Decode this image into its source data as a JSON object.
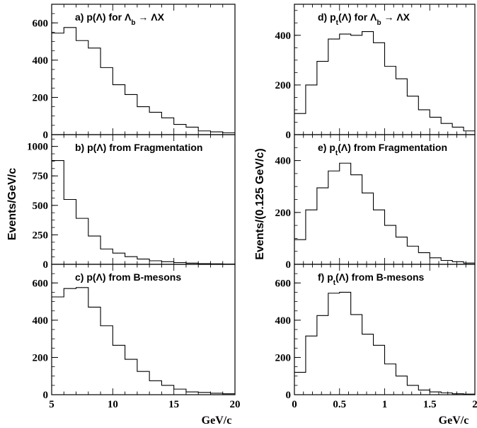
{
  "figure": {
    "left_ylabel": "Events/GeV/c",
    "right_ylabel": "Events/(0.125 GeV/c)",
    "left_xlabel": "GeV/c",
    "right_xlabel": "GeV/c"
  },
  "chart_data": [
    {
      "id": "a",
      "type": "histogram",
      "column": "left",
      "row": 0,
      "title": {
        "pre": "a) p(",
        "lam": "Λ",
        "mid": ") for ",
        "lam2": "Λ",
        "sub": "b",
        "post": " → ΛX"
      },
      "xlim": [
        5,
        20
      ],
      "ylim": [
        0,
        700
      ],
      "yticks": [
        0,
        200,
        400,
        600
      ],
      "xticks": [
        5,
        10,
        15,
        20
      ],
      "edges": [
        5,
        6,
        7,
        8,
        9,
        10,
        11,
        12,
        13,
        14,
        15,
        16,
        17,
        18,
        19,
        20
      ],
      "values": [
        545,
        575,
        505,
        465,
        360,
        268,
        215,
        150,
        120,
        90,
        55,
        40,
        20,
        15,
        10
      ]
    },
    {
      "id": "b",
      "type": "histogram",
      "column": "left",
      "row": 1,
      "title": {
        "pre": "b) p(",
        "lam": "Λ",
        "mid": ") from Fragmentation",
        "lam2": "",
        "sub": "",
        "post": ""
      },
      "xlim": [
        5,
        20
      ],
      "ylim": [
        0,
        1100
      ],
      "yticks": [
        0,
        250,
        500,
        750,
        1000
      ],
      "xticks": [
        5,
        10,
        15,
        20
      ],
      "edges": [
        5,
        6,
        7,
        8,
        9,
        10,
        11,
        12,
        13,
        14,
        15,
        16,
        17,
        18,
        19,
        20
      ],
      "values": [
        880,
        550,
        390,
        240,
        130,
        95,
        65,
        45,
        30,
        22,
        15,
        10,
        6,
        4,
        2
      ]
    },
    {
      "id": "c",
      "type": "histogram",
      "column": "left",
      "row": 2,
      "title": {
        "pre": "c) p(",
        "lam": "Λ",
        "mid": ") from B-mesons",
        "lam2": "",
        "sub": "",
        "post": ""
      },
      "xlim": [
        5,
        20
      ],
      "ylim": [
        0,
        700
      ],
      "yticks": [
        0,
        200,
        400,
        600
      ],
      "xticks": [
        5,
        10,
        15,
        20
      ],
      "edges": [
        5,
        6,
        7,
        8,
        9,
        10,
        11,
        12,
        13,
        14,
        15,
        16,
        17,
        18,
        19,
        20
      ],
      "values": [
        525,
        570,
        575,
        470,
        370,
        265,
        190,
        125,
        75,
        50,
        30,
        15,
        12,
        8,
        5
      ]
    },
    {
      "id": "d",
      "type": "histogram",
      "column": "right",
      "row": 0,
      "title": {
        "pre": "d) p",
        "lam": "",
        "tsub": "t",
        "mid2": "(Λ) for ",
        "lam2": "Λ",
        "sub": "b",
        "post": " → ΛX"
      },
      "xlim": [
        0,
        2
      ],
      "ylim": [
        0,
        525
      ],
      "yticks": [
        0,
        200,
        400
      ],
      "xticks": [
        0,
        0.5,
        1,
        1.5,
        2
      ],
      "edges": [
        0,
        0.125,
        0.25,
        0.375,
        0.5,
        0.625,
        0.75,
        0.875,
        1.0,
        1.125,
        1.25,
        1.375,
        1.5,
        1.625,
        1.75,
        1.875,
        2.0
      ],
      "values": [
        85,
        200,
        295,
        385,
        405,
        400,
        415,
        370,
        275,
        225,
        155,
        100,
        70,
        45,
        30,
        15
      ]
    },
    {
      "id": "e",
      "type": "histogram",
      "column": "right",
      "row": 1,
      "title": {
        "pre": "e) p",
        "lam": "",
        "tsub": "t",
        "mid2": "(Λ) from Fragmentation",
        "lam2": "",
        "sub": "",
        "post": ""
      },
      "xlim": [
        0,
        2
      ],
      "ylim": [
        0,
        500
      ],
      "yticks": [
        0,
        200,
        400
      ],
      "xticks": [
        0,
        0.5,
        1,
        1.5,
        2
      ],
      "edges": [
        0,
        0.125,
        0.25,
        0.375,
        0.5,
        0.625,
        0.75,
        0.875,
        1.0,
        1.125,
        1.25,
        1.375,
        1.5,
        1.625,
        1.75,
        1.875,
        2.0
      ],
      "values": [
        95,
        210,
        295,
        360,
        390,
        345,
        275,
        210,
        150,
        105,
        70,
        45,
        25,
        15,
        10,
        5
      ]
    },
    {
      "id": "f",
      "type": "histogram",
      "column": "right",
      "row": 2,
      "title": {
        "pre": "f) p",
        "lam": "",
        "tsub": "t",
        "mid2": "(Λ) from B-mesons",
        "lam2": "",
        "sub": "",
        "post": ""
      },
      "xlim": [
        0,
        2
      ],
      "ylim": [
        0,
        700
      ],
      "yticks": [
        0,
        200,
        400,
        600
      ],
      "xticks": [
        0,
        0.5,
        1,
        1.5,
        2
      ],
      "edges": [
        0,
        0.125,
        0.25,
        0.375,
        0.5,
        0.625,
        0.75,
        0.875,
        1.0,
        1.125,
        1.25,
        1.375,
        1.5,
        1.625,
        1.75,
        1.875,
        2.0
      ],
      "values": [
        120,
        315,
        425,
        545,
        550,
        430,
        325,
        265,
        165,
        100,
        50,
        25,
        15,
        10,
        5,
        3
      ]
    }
  ]
}
